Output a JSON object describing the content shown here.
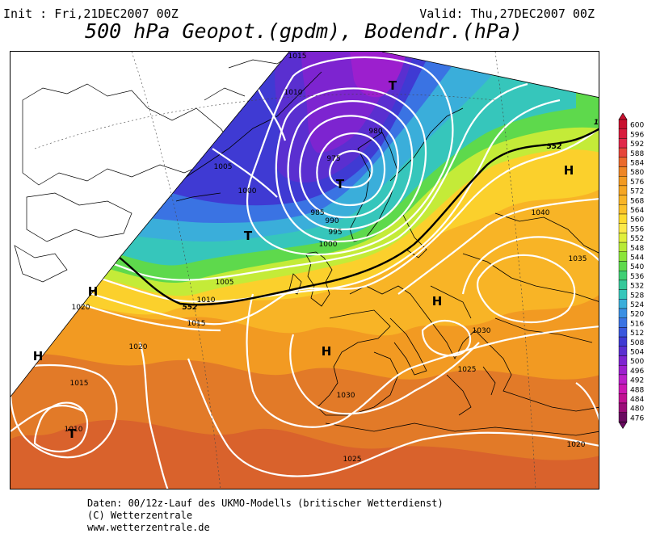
{
  "header": {
    "init": "Init : Fri,21DEC2007 00Z",
    "valid": "Valid: Thu,27DEC2007 00Z",
    "title": "500 hPa Geopot.(gpdm), Bodendr.(hPa)"
  },
  "legend": {
    "values": [
      "600",
      "596",
      "592",
      "588",
      "584",
      "580",
      "576",
      "572",
      "568",
      "564",
      "560",
      "556",
      "552",
      "548",
      "544",
      "540",
      "536",
      "532",
      "528",
      "524",
      "520",
      "516",
      "512",
      "508",
      "504",
      "500",
      "496",
      "492",
      "488",
      "484",
      "480",
      "476"
    ],
    "colors": [
      "#c8102e",
      "#d81b3c",
      "#e0284a",
      "#e6453a",
      "#ea6a2c",
      "#ee8626",
      "#f29a22",
      "#f5a623",
      "#f8b426",
      "#fbc12a",
      "#fddb2f",
      "#fbe94a",
      "#e0ef3c",
      "#b8ea37",
      "#8ce53a",
      "#5ed94c",
      "#3fcf74",
      "#35c89a",
      "#36c6bb",
      "#3aaeda",
      "#3a8fe3",
      "#3a73e3",
      "#3a57dd",
      "#3f3ad3",
      "#5a2fd0",
      "#7d24d0",
      "#9c1fce",
      "#bb1fc9",
      "#cc18b2",
      "#c01192",
      "#9a0c78",
      "#6a0a60"
    ]
  },
  "map_labels": {
    "pressure": [
      "1015",
      "1010",
      "980",
      "975",
      "1005",
      "1000",
      "985",
      "990",
      "995",
      "1000",
      "1005",
      "1010",
      "1015",
      "1020",
      "1020",
      "1015",
      "1010",
      "1030",
      "1030",
      "1025",
      "1035",
      "1040",
      "1025",
      "1020"
    ],
    "geopotential": [
      "552",
      "552",
      "1"
    ],
    "centers": [
      "T",
      "T",
      "T",
      "T",
      "H",
      "H",
      "H",
      "H",
      "H"
    ]
  },
  "footer": {
    "line1": "Daten: 00/12z-Lauf des UKMO-Modells (britischer Wetterdienst)",
    "line2": "(C) Wetterzentrale",
    "line3": "www.wetterzentrale.de"
  }
}
